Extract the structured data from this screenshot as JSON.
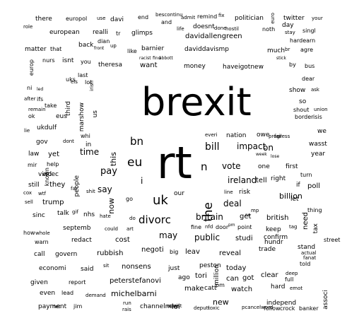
{
  "background_color": "#ffffff",
  "text_color": "#000000",
  "words": [
    {
      "text": "brexit"
    },
    {
      "text": "rt"
    },
    {
      "text": "eu"
    },
    {
      "text": "uk"
    },
    {
      "text": "bn"
    },
    {
      "text": "the"
    },
    {
      "text": "divorc"
    },
    {
      "text": "britain"
    },
    {
      "text": "n"
    },
    {
      "text": "bill"
    },
    {
      "text": "ireland"
    },
    {
      "text": "vote"
    },
    {
      "text": "impact"
    },
    {
      "text": "deal"
    },
    {
      "text": "time"
    },
    {
      "text": "pay"
    },
    {
      "text": "say"
    },
    {
      "text": "i"
    },
    {
      "text": "this"
    },
    {
      "text": "public"
    },
    {
      "text": "billion"
    },
    {
      "text": "may"
    },
    {
      "text": "there"
    },
    {
      "text": "europol"
    },
    {
      "text": "use"
    },
    {
      "text": "davi"
    },
    {
      "text": "end"
    },
    {
      "text": "bescontinu"
    },
    {
      "text": "admit"
    },
    {
      "text": "remind"
    },
    {
      "text": "fix"
    },
    {
      "text": "politician"
    },
    {
      "text": "euro"
    },
    {
      "text": "twitter"
    },
    {
      "text": "your"
    },
    {
      "text": "role"
    },
    {
      "text": "european"
    },
    {
      "text": "realli"
    },
    {
      "text": "tr"
    },
    {
      "text": "glimps"
    },
    {
      "text": "life"
    },
    {
      "text": "doesnt"
    },
    {
      "text": "done"
    },
    {
      "text": "hostil"
    },
    {
      "text": "noth"
    },
    {
      "text": "day"
    },
    {
      "text": "singl"
    },
    {
      "text": "and"
    },
    {
      "text": "davidallengreen"
    },
    {
      "text": "stay"
    },
    {
      "text": "hardearn"
    },
    {
      "text": "matter"
    },
    {
      "text": "that"
    },
    {
      "text": "back"
    },
    {
      "text": "dian"
    },
    {
      "text": "front"
    },
    {
      "text": "up"
    },
    {
      "text": "like"
    },
    {
      "text": "barnier"
    },
    {
      "text": "daviddavismp"
    },
    {
      "text": "much"
    },
    {
      "text": "br"
    },
    {
      "text": "agre"
    },
    {
      "text": "nurs"
    },
    {
      "text": "isnt"
    },
    {
      "text": "you"
    },
    {
      "text": "racist"
    },
    {
      "text": "find"
    },
    {
      "text": "abbott"
    },
    {
      "text": "stick"
    },
    {
      "text": "by"
    },
    {
      "text": "bus"
    },
    {
      "text": "europ"
    },
    {
      "text": "theresa"
    },
    {
      "text": "want"
    },
    {
      "text": "money"
    },
    {
      "text": "haveigotnew"
    },
    {
      "text": "last"
    },
    {
      "text": "uks"
    },
    {
      "text": "els"
    },
    {
      "text": "lot"
    },
    {
      "text": "dear"
    },
    {
      "text": "irish"
    },
    {
      "text": "ni"
    },
    {
      "text": "led"
    },
    {
      "text": "show"
    },
    {
      "text": "ask"
    },
    {
      "text": "after"
    },
    {
      "text": "ifs"
    },
    {
      "text": "so"
    },
    {
      "text": "take"
    },
    {
      "text": "third"
    },
    {
      "text": "marshow"
    },
    {
      "text": "remain"
    },
    {
      "text": "shout"
    },
    {
      "text": "union"
    },
    {
      "text": "ok"
    },
    {
      "text": "eus"
    },
    {
      "text": "us"
    },
    {
      "text": "border"
    },
    {
      "text": "isis"
    },
    {
      "text": "lie"
    },
    {
      "text": "ukdulf"
    },
    {
      "text": "we"
    },
    {
      "text": "everi"
    },
    {
      "text": "nation"
    },
    {
      "text": "owe"
    },
    {
      "text": "progress"
    },
    {
      "text": "fail"
    },
    {
      "text": "wasst"
    },
    {
      "text": "whi"
    },
    {
      "text": "in"
    },
    {
      "text": "gov"
    },
    {
      "text": "dont"
    },
    {
      "text": "on"
    },
    {
      "text": "year"
    },
    {
      "text": "law"
    },
    {
      "text": "yet"
    },
    {
      "text": "week"
    },
    {
      "text": "lose"
    },
    {
      "text": "mir"
    },
    {
      "text": "help"
    },
    {
      "text": "one"
    },
    {
      "text": "first"
    },
    {
      "text": "vincec"
    },
    {
      "text": "wd"
    },
    {
      "text": "known"
    },
    {
      "text": "tell"
    },
    {
      "text": "right"
    },
    {
      "text": "still"
    },
    {
      "text": "they"
    },
    {
      "text": "people"
    },
    {
      "text": "poll"
    },
    {
      "text": "if"
    },
    {
      "text": "turn"
    },
    {
      "text": "cox"
    },
    {
      "text": "wtf"
    },
    {
      "text": "far"
    },
    {
      "text": "shit"
    },
    {
      "text": "risk"
    },
    {
      "text": "line"
    },
    {
      "text": "let"
    },
    {
      "text": "sell"
    },
    {
      "text": "trump"
    },
    {
      "text": "go"
    },
    {
      "text": "our"
    },
    {
      "text": "nhs"
    },
    {
      "text": "now"
    },
    {
      "text": "sinc"
    },
    {
      "text": "talk"
    },
    {
      "text": "gif"
    },
    {
      "text": "get"
    },
    {
      "text": "need"
    },
    {
      "text": "british"
    },
    {
      "text": "thing"
    },
    {
      "text": "septemb"
    },
    {
      "text": "fine"
    },
    {
      "text": "nfd"
    },
    {
      "text": "door"
    },
    {
      "text": "point"
    },
    {
      "text": "keep"
    },
    {
      "text": "tax"
    },
    {
      "text": "tag"
    },
    {
      "text": "how"
    },
    {
      "text": "could"
    },
    {
      "text": "art"
    },
    {
      "text": "whole"
    },
    {
      "text": "warn"
    },
    {
      "text": "redact"
    },
    {
      "text": "cost"
    },
    {
      "text": "studi"
    },
    {
      "text": "confirm"
    },
    {
      "text": "street"
    },
    {
      "text": "hundr"
    },
    {
      "text": "stand"
    },
    {
      "text": "trade"
    },
    {
      "text": "call"
    },
    {
      "text": "govern"
    },
    {
      "text": "rubbish"
    },
    {
      "text": "negoti"
    },
    {
      "text": "leav"
    },
    {
      "text": "big"
    },
    {
      "text": "reveal"
    },
    {
      "text": "actual"
    },
    {
      "text": "fanat"
    },
    {
      "text": "told"
    },
    {
      "text": "economi"
    },
    {
      "text": "said"
    },
    {
      "text": "sit"
    },
    {
      "text": "nonsens"
    },
    {
      "text": "just"
    },
    {
      "text": "peston"
    },
    {
      "text": "today"
    },
    {
      "text": "ago"
    },
    {
      "text": "tori"
    },
    {
      "text": "million"
    },
    {
      "text": "can"
    },
    {
      "text": "got"
    },
    {
      "text": "clear"
    },
    {
      "text": "deep"
    },
    {
      "text": "full"
    },
    {
      "text": "given"
    },
    {
      "text": "report"
    },
    {
      "text": "peterstefanovi"
    },
    {
      "text": "hard"
    },
    {
      "text": "emot"
    },
    {
      "text": "make"
    },
    {
      "text": "catt"
    },
    {
      "text": "watch"
    },
    {
      "text": "even"
    },
    {
      "text": "lead"
    },
    {
      "text": "michelbarni"
    },
    {
      "text": "new"
    },
    {
      "text": "pm"
    },
    {
      "text": "independ"
    },
    {
      "text": "payment"
    },
    {
      "text": "net"
    },
    {
      "text": "jim"
    },
    {
      "text": "channelnew"
    },
    {
      "text": "minist"
    },
    {
      "text": "lol"
    },
    {
      "text": "deputi"
    },
    {
      "text": "toxic"
    },
    {
      "text": "pcancelword"
    },
    {
      "text": "follow"
    },
    {
      "text": "crock"
    },
    {
      "text": "banker"
    },
    {
      "text": "associ"
    },
    {
      "text": "demand"
    },
    {
      "text": "run"
    },
    {
      "text": "rais"
    },
    {
      "text": "hate"
    },
    {
      "text": "do"
    },
    {
      "text": "no"
    },
    {
      "text": "pm"
    },
    {
      "text": "mp"
    }
  ]
}
